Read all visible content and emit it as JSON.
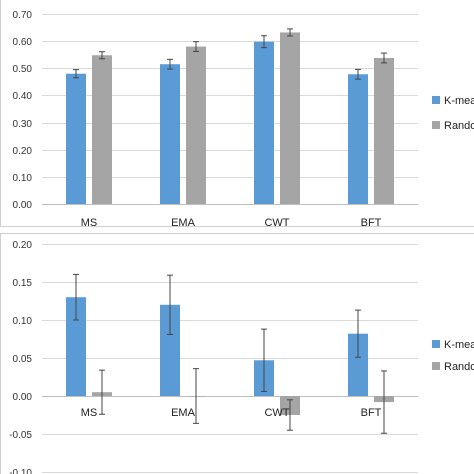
{
  "chart_data": [
    {
      "type": "bar",
      "categories": [
        "MS",
        "EMA",
        "CWT",
        "BFT"
      ],
      "series": [
        {
          "name": "K-mea",
          "color": "#5b9bd5",
          "values": [
            0.48,
            0.515,
            0.598,
            0.478
          ],
          "errors": [
            0.015,
            0.018,
            0.022,
            0.018
          ]
        },
        {
          "name": "Rando",
          "color": "#a5a5a5",
          "values": [
            0.548,
            0.58,
            0.632,
            0.538
          ],
          "errors": [
            0.013,
            0.018,
            0.013,
            0.018
          ]
        }
      ],
      "ylim": [
        0,
        0.7
      ],
      "yticks": [
        "0.00",
        "0.10",
        "0.20",
        "0.30",
        "0.40",
        "0.50",
        "0.60",
        "0.70"
      ],
      "grid": true,
      "legend": "right"
    },
    {
      "type": "bar",
      "categories": [
        "MS",
        "EMA",
        "CWT",
        "BFT"
      ],
      "series": [
        {
          "name": "K-mea",
          "color": "#5b9bd5",
          "values": [
            0.13,
            0.12,
            0.047,
            0.082
          ],
          "errors": [
            0.03,
            0.039,
            0.041,
            0.031
          ]
        },
        {
          "name": "Rando",
          "color": "#a5a5a5",
          "values": [
            0.005,
            0.0,
            -0.025,
            -0.008
          ],
          "errors": [
            0.029,
            0.036,
            0.02,
            0.041
          ]
        }
      ],
      "ylim": [
        -0.1,
        0.2
      ],
      "yticks": [
        "-0.10",
        "-0.05",
        "0.00",
        "0.05",
        "0.10",
        "0.15",
        "0.20"
      ],
      "grid": true,
      "legend": "right"
    }
  ]
}
